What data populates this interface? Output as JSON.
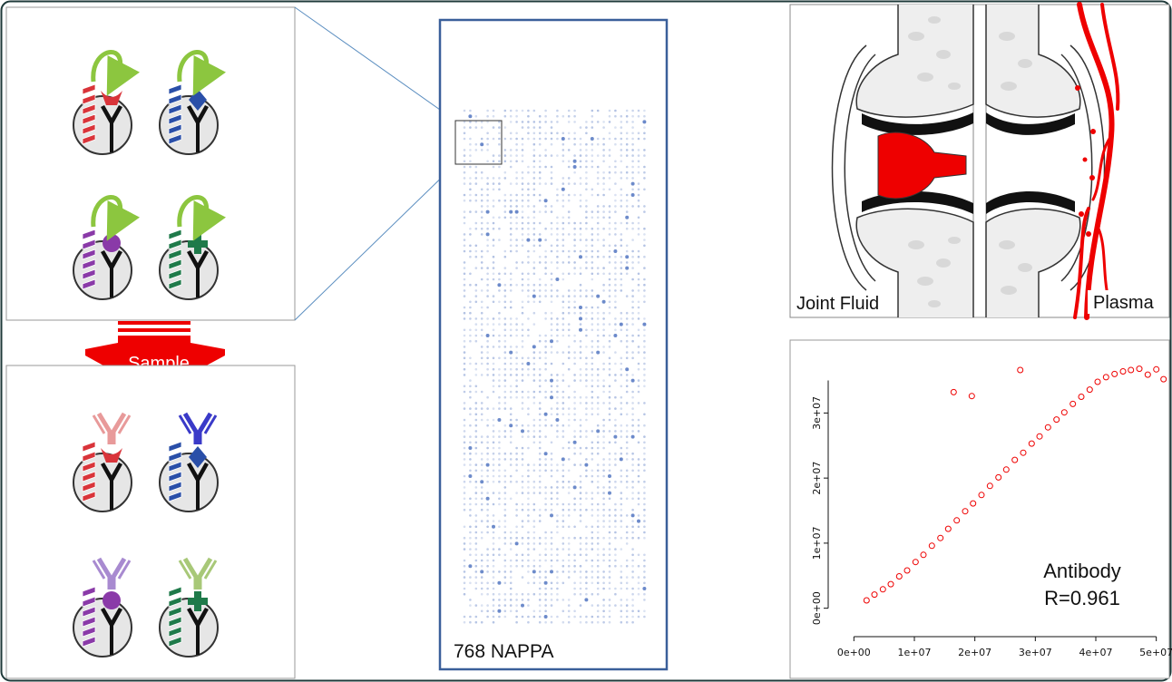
{
  "array": {
    "label": "768 NAPPA"
  },
  "workflow": {
    "sample_label": "Sample",
    "colors": {
      "protein_1": "#d9343a",
      "protein_2": "#2a4fa8",
      "protein_3": "#8a3aa8",
      "protein_4": "#1f7a4a",
      "capture_arrow": "#8cc63f",
      "sample_arrow": "#ee0000",
      "antibody_1": "#e89a9a",
      "antibody_2": "#3a3ac8",
      "antibody_3": "#a88ad0",
      "antibody_4": "#a8c878"
    }
  },
  "joint": {
    "left_label": "Joint Fluid",
    "right_label": "Plasma"
  },
  "chart_data": {
    "type": "scatter",
    "title": "",
    "xlabel": "",
    "ylabel": "",
    "annotation": [
      "Antibody",
      "R=0.961"
    ],
    "xlim": [
      -2000000,
      52000000
    ],
    "ylim": [
      -2000000,
      38000000
    ],
    "x_ticks": [
      "0e+00",
      "1e+07",
      "2e+07",
      "3e+07",
      "4e+07",
      "5e+07"
    ],
    "y_ticks": [
      "0e+00",
      "1e+07",
      "2e+07",
      "3e+07"
    ],
    "marker_color": "#ee0000",
    "grid": false,
    "points": [
      [
        2100000,
        1200000
      ],
      [
        3400000,
        2100000
      ],
      [
        4800000,
        2900000
      ],
      [
        6100000,
        3700000
      ],
      [
        7500000,
        4900000
      ],
      [
        8800000,
        5800000
      ],
      [
        10200000,
        7100000
      ],
      [
        11500000,
        8200000
      ],
      [
        12900000,
        9600000
      ],
      [
        14300000,
        10800000
      ],
      [
        15600000,
        12200000
      ],
      [
        17000000,
        13500000
      ],
      [
        18400000,
        14900000
      ],
      [
        19700000,
        16100000
      ],
      [
        21100000,
        17400000
      ],
      [
        22500000,
        18800000
      ],
      [
        23900000,
        20100000
      ],
      [
        25200000,
        21300000
      ],
      [
        26600000,
        22800000
      ],
      [
        28000000,
        23900000
      ],
      [
        29400000,
        25300000
      ],
      [
        30700000,
        26400000
      ],
      [
        32100000,
        27800000
      ],
      [
        33500000,
        29000000
      ],
      [
        34800000,
        30100000
      ],
      [
        36200000,
        31400000
      ],
      [
        37600000,
        32500000
      ],
      [
        39000000,
        33600000
      ],
      [
        40300000,
        34800000
      ],
      [
        41700000,
        35500000
      ],
      [
        43100000,
        36000000
      ],
      [
        44500000,
        36400000
      ],
      [
        45800000,
        36600000
      ],
      [
        47200000,
        36800000
      ],
      [
        48600000,
        35900000
      ],
      [
        50000000,
        36700000
      ],
      [
        51200000,
        35200000
      ],
      [
        19500000,
        32600000
      ],
      [
        16500000,
        33200000
      ],
      [
        27500000,
        36600000
      ]
    ]
  }
}
